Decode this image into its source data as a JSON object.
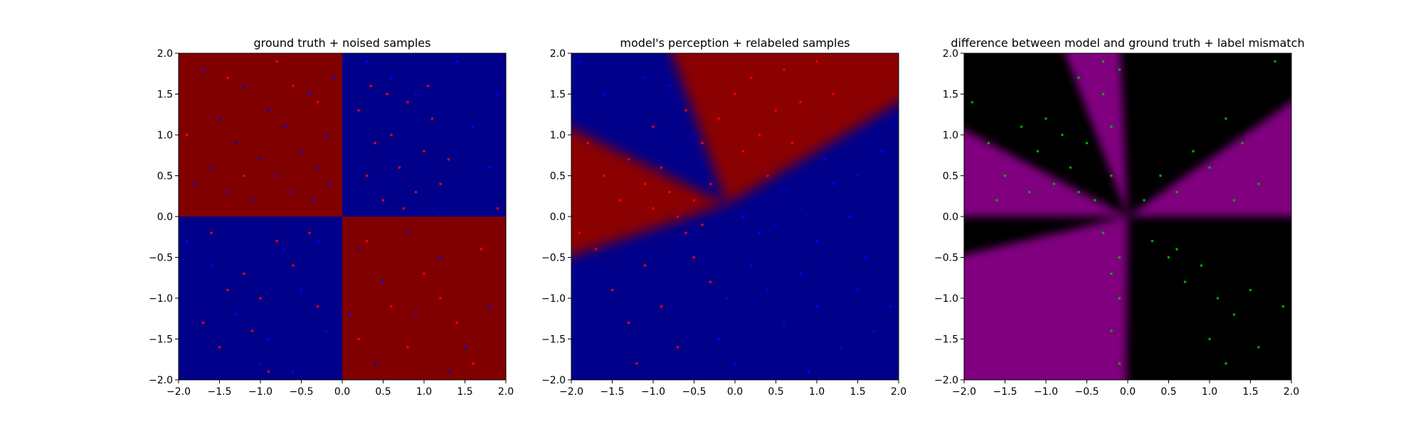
{
  "figure": {
    "background": "#ffffff"
  },
  "chart_data": [
    {
      "type": "heatmap",
      "title": "ground truth + noised samples",
      "xlabel": "",
      "ylabel": "",
      "xlim": [
        -2.0,
        2.0
      ],
      "ylim": [
        -2.0,
        2.0
      ],
      "xticks": [
        "−2.0",
        "−1.5",
        "−1.0",
        "−0.5",
        "0.0",
        "0.5",
        "1.0",
        "1.5",
        "2.0"
      ],
      "yticks": [
        "−2.0",
        "−1.5",
        "−1.0",
        "−0.5",
        "0.0",
        "0.5",
        "1.0",
        "1.5",
        "2.0"
      ],
      "grid": false,
      "background_regions": [
        {
          "x": [
            -2.0,
            0.0
          ],
          "y": [
            0.0,
            2.0
          ],
          "color": "#800000"
        },
        {
          "x": [
            0.0,
            2.0
          ],
          "y": [
            0.0,
            2.0
          ],
          "color": "#00008b"
        },
        {
          "x": [
            -2.0,
            0.0
          ],
          "y": [
            -2.0,
            0.0
          ],
          "color": "#00008b"
        },
        {
          "x": [
            0.0,
            2.0
          ],
          "y": [
            -2.0,
            0.0
          ],
          "color": "#800000"
        }
      ],
      "series": [
        {
          "color": "#0000ff",
          "points": [
            [
              -1.7,
              1.8
            ],
            [
              -1.5,
              1.2
            ],
            [
              -1.3,
              0.9
            ],
            [
              -1.2,
              1.6
            ],
            [
              -1.0,
              0.7
            ],
            [
              -0.9,
              1.3
            ],
            [
              -0.8,
              0.5
            ],
            [
              -0.7,
              1.1
            ],
            [
              -0.6,
              0.3
            ],
            [
              -0.5,
              0.8
            ],
            [
              -0.4,
              1.5
            ],
            [
              -0.35,
              0.2
            ],
            [
              -0.3,
              0.6
            ],
            [
              -0.2,
              1.0
            ],
            [
              -0.15,
              0.4
            ],
            [
              -0.1,
              1.7
            ],
            [
              -1.8,
              0.4
            ],
            [
              -1.6,
              0.6
            ],
            [
              -1.4,
              0.3
            ],
            [
              -1.1,
              0.2
            ],
            [
              0.3,
              1.9
            ],
            [
              0.6,
              1.7
            ],
            [
              0.9,
              1.5
            ],
            [
              1.4,
              1.9
            ],
            [
              1.6,
              1.1
            ],
            [
              1.8,
              0.6
            ],
            [
              1.1,
              0.1
            ],
            [
              1.9,
              1.5
            ],
            [
              -1.9,
              -0.3
            ],
            [
              -1.6,
              -0.6
            ],
            [
              -1.3,
              -1.2
            ],
            [
              -0.9,
              -1.5
            ],
            [
              -0.7,
              -0.4
            ],
            [
              -0.5,
              -0.9
            ],
            [
              -0.3,
              -0.3
            ],
            [
              -0.2,
              -1.4
            ],
            [
              -1.0,
              -1.8
            ],
            [
              -0.6,
              -1.9
            ],
            [
              0.2,
              -0.4
            ],
            [
              0.5,
              -0.8
            ],
            [
              0.9,
              -1.2
            ],
            [
              1.2,
              -0.5
            ],
            [
              1.5,
              -1.6
            ],
            [
              0.4,
              -1.8
            ],
            [
              1.8,
              -1.1
            ],
            [
              0.8,
              -0.2
            ],
            [
              1.3,
              -1.9
            ],
            [
              0.1,
              -1.2
            ]
          ]
        },
        {
          "color": "#ff0000",
          "points": [
            [
              0.2,
              1.3
            ],
            [
              0.3,
              0.5
            ],
            [
              0.4,
              0.9
            ],
            [
              0.5,
              0.2
            ],
            [
              0.6,
              1.0
            ],
            [
              0.7,
              0.6
            ],
            [
              0.8,
              1.4
            ],
            [
              0.9,
              0.3
            ],
            [
              1.0,
              0.8
            ],
            [
              1.1,
              1.2
            ],
            [
              1.2,
              0.4
            ],
            [
              1.3,
              0.7
            ],
            [
              0.35,
              1.6
            ],
            [
              0.55,
              1.5
            ],
            [
              0.75,
              0.1
            ],
            [
              1.05,
              1.6
            ],
            [
              -1.4,
              1.7
            ],
            [
              -0.8,
              1.9
            ],
            [
              -0.3,
              1.4
            ],
            [
              -1.2,
              0.5
            ],
            [
              -0.6,
              1.6
            ],
            [
              -1.9,
              1.0
            ],
            [
              -1.6,
              -0.2
            ],
            [
              -1.4,
              -0.9
            ],
            [
              -1.2,
              -0.7
            ],
            [
              -1.0,
              -1.0
            ],
            [
              -0.8,
              -0.3
            ],
            [
              -0.6,
              -0.6
            ],
            [
              -0.4,
              -0.2
            ],
            [
              -0.3,
              -1.1
            ],
            [
              -1.5,
              -1.6
            ],
            [
              -1.1,
              -1.4
            ],
            [
              -0.9,
              -1.9
            ],
            [
              -1.7,
              -1.3
            ],
            [
              0.3,
              -0.3
            ],
            [
              0.6,
              -1.1
            ],
            [
              1.0,
              -0.7
            ],
            [
              1.4,
              -1.3
            ],
            [
              0.8,
              -1.6
            ],
            [
              1.7,
              -0.4
            ],
            [
              0.2,
              -1.5
            ],
            [
              1.2,
              -1.0
            ],
            [
              1.9,
              0.1
            ],
            [
              1.6,
              -1.8
            ]
          ]
        }
      ]
    },
    {
      "type": "heatmap",
      "title": "model's perception + relabeled samples",
      "xlabel": "",
      "ylabel": "",
      "xlim": [
        -2.0,
        2.0
      ],
      "ylim": [
        -2.0,
        2.0
      ],
      "xticks": [
        "−2.0",
        "−1.5",
        "−1.0",
        "−0.5",
        "0.0",
        "0.5",
        "1.0",
        "1.5",
        "2.0"
      ],
      "yticks": [
        "−2.0",
        "−1.5",
        "−1.0",
        "−0.5",
        "0.0",
        "0.5",
        "1.0",
        "1.5",
        "2.0"
      ],
      "grid": false,
      "background_colors": {
        "red": "#8b0000",
        "blue": "#00008b"
      },
      "background_boundaries": [
        {
          "from": [
            -2.0,
            1.25
          ],
          "to": [
            -0.1,
            0.15
          ]
        },
        {
          "from": [
            -0.1,
            0.15
          ],
          "to": [
            -0.9,
            2.0
          ]
        },
        {
          "from": [
            -0.1,
            0.15
          ],
          "to": [
            2.0,
            1.6
          ]
        },
        {
          "from": [
            -0.1,
            0.15
          ],
          "to": [
            -2.0,
            -0.6
          ]
        }
      ],
      "series": [
        {
          "color": "#ff0000",
          "points": [
            [
              -1.8,
              0.9
            ],
            [
              -1.6,
              0.5
            ],
            [
              -1.4,
              0.2
            ],
            [
              -1.3,
              0.7
            ],
            [
              -1.1,
              0.4
            ],
            [
              -1.0,
              0.1
            ],
            [
              -0.9,
              0.6
            ],
            [
              -0.8,
              0.3
            ],
            [
              -0.7,
              0.0
            ],
            [
              -0.6,
              -0.2
            ],
            [
              -0.5,
              0.2
            ],
            [
              -0.4,
              -0.1
            ],
            [
              -0.3,
              0.4
            ],
            [
              -0.2,
              1.2
            ],
            [
              0.0,
              1.5
            ],
            [
              0.1,
              0.8
            ],
            [
              0.2,
              1.7
            ],
            [
              0.3,
              1.0
            ],
            [
              0.4,
              0.5
            ],
            [
              0.5,
              1.3
            ],
            [
              0.6,
              1.8
            ],
            [
              0.7,
              0.9
            ],
            [
              0.8,
              1.4
            ],
            [
              1.0,
              1.9
            ],
            [
              1.2,
              1.5
            ],
            [
              -1.7,
              -0.4
            ],
            [
              -1.5,
              -0.9
            ],
            [
              -1.3,
              -1.3
            ],
            [
              -1.1,
              -0.6
            ],
            [
              -0.9,
              -1.1
            ],
            [
              -0.7,
              -1.6
            ],
            [
              -0.5,
              -0.5
            ],
            [
              -0.3,
              -0.8
            ],
            [
              -1.2,
              -1.8
            ],
            [
              -1.9,
              -0.2
            ],
            [
              -0.4,
              0.9
            ],
            [
              -0.6,
              1.3
            ],
            [
              -1.0,
              1.1
            ]
          ]
        },
        {
          "color": "#0000ff",
          "points": [
            [
              0.1,
              0.0
            ],
            [
              0.3,
              -0.2
            ],
            [
              0.5,
              -0.1
            ],
            [
              0.6,
              0.3
            ],
            [
              0.8,
              0.1
            ],
            [
              1.0,
              -0.3
            ],
            [
              1.2,
              0.4
            ],
            [
              1.4,
              0.0
            ],
            [
              1.6,
              -0.5
            ],
            [
              1.8,
              0.8
            ],
            [
              0.2,
              -0.6
            ],
            [
              0.4,
              -0.9
            ],
            [
              0.6,
              -1.3
            ],
            [
              0.8,
              -0.7
            ],
            [
              1.0,
              -1.1
            ],
            [
              1.3,
              -1.6
            ],
            [
              1.5,
              -0.9
            ],
            [
              1.7,
              -1.4
            ],
            [
              1.9,
              -1.1
            ],
            [
              0.0,
              -1.8
            ],
            [
              -0.1,
              -1.0
            ],
            [
              -0.2,
              -1.5
            ],
            [
              0.9,
              -1.9
            ],
            [
              1.1,
              0.7
            ],
            [
              1.5,
              0.5
            ],
            [
              -1.6,
              1.5
            ],
            [
              -1.1,
              1.7
            ],
            [
              -1.9,
              1.9
            ],
            [
              -0.5,
              1.0
            ],
            [
              -0.8,
              1.6
            ]
          ]
        }
      ]
    },
    {
      "type": "heatmap",
      "title": "difference between model and ground truth + label mismatch",
      "xlabel": "",
      "ylabel": "",
      "xlim": [
        -2.0,
        2.0
      ],
      "ylim": [
        -2.0,
        2.0
      ],
      "xticks": [
        "−2.0",
        "−1.5",
        "−1.0",
        "−0.5",
        "0.0",
        "0.5",
        "1.0",
        "1.5",
        "2.0"
      ],
      "yticks": [
        "−2.0",
        "−1.5",
        "−1.0",
        "−0.5",
        "0.0",
        "0.5",
        "1.0",
        "1.5",
        "2.0"
      ],
      "grid": false,
      "background_colors": {
        "match": "#000000",
        "mismatch": "#800080"
      },
      "series": [
        {
          "color": "#00aa00",
          "points": [
            [
              -1.9,
              1.4
            ],
            [
              -1.7,
              0.9
            ],
            [
              -1.5,
              0.5
            ],
            [
              -1.3,
              1.1
            ],
            [
              -1.1,
              0.8
            ],
            [
              -0.9,
              0.4
            ],
            [
              -1.0,
              1.2
            ],
            [
              -0.8,
              1.0
            ],
            [
              -0.7,
              0.6
            ],
            [
              -0.6,
              0.3
            ],
            [
              -0.5,
              0.9
            ],
            [
              -0.4,
              0.2
            ],
            [
              -0.3,
              1.5
            ],
            [
              -0.2,
              0.5
            ],
            [
              -0.1,
              1.8
            ],
            [
              -0.3,
              1.9
            ],
            [
              -0.6,
              1.7
            ],
            [
              -0.2,
              1.1
            ],
            [
              -1.6,
              0.2
            ],
            [
              -1.2,
              0.3
            ],
            [
              0.2,
              0.2
            ],
            [
              0.4,
              0.5
            ],
            [
              0.6,
              0.3
            ],
            [
              0.8,
              0.8
            ],
            [
              1.0,
              0.6
            ],
            [
              1.2,
              1.2
            ],
            [
              1.4,
              0.9
            ],
            [
              1.6,
              0.4
            ],
            [
              1.3,
              0.2
            ],
            [
              1.8,
              1.9
            ],
            [
              0.3,
              -0.3
            ],
            [
              0.5,
              -0.5
            ],
            [
              0.7,
              -0.8
            ],
            [
              0.9,
              -0.6
            ],
            [
              1.1,
              -1.0
            ],
            [
              1.3,
              -1.2
            ],
            [
              1.5,
              -0.9
            ],
            [
              1.0,
              -1.5
            ],
            [
              1.2,
              -1.8
            ],
            [
              1.6,
              -1.6
            ],
            [
              1.9,
              -1.1
            ],
            [
              0.6,
              -0.4
            ],
            [
              -0.1,
              -0.5
            ],
            [
              -0.1,
              -1.0
            ],
            [
              -0.2,
              -1.4
            ],
            [
              -0.1,
              -1.8
            ],
            [
              -0.3,
              -0.2
            ],
            [
              -0.2,
              -0.7
            ]
          ]
        }
      ]
    }
  ]
}
